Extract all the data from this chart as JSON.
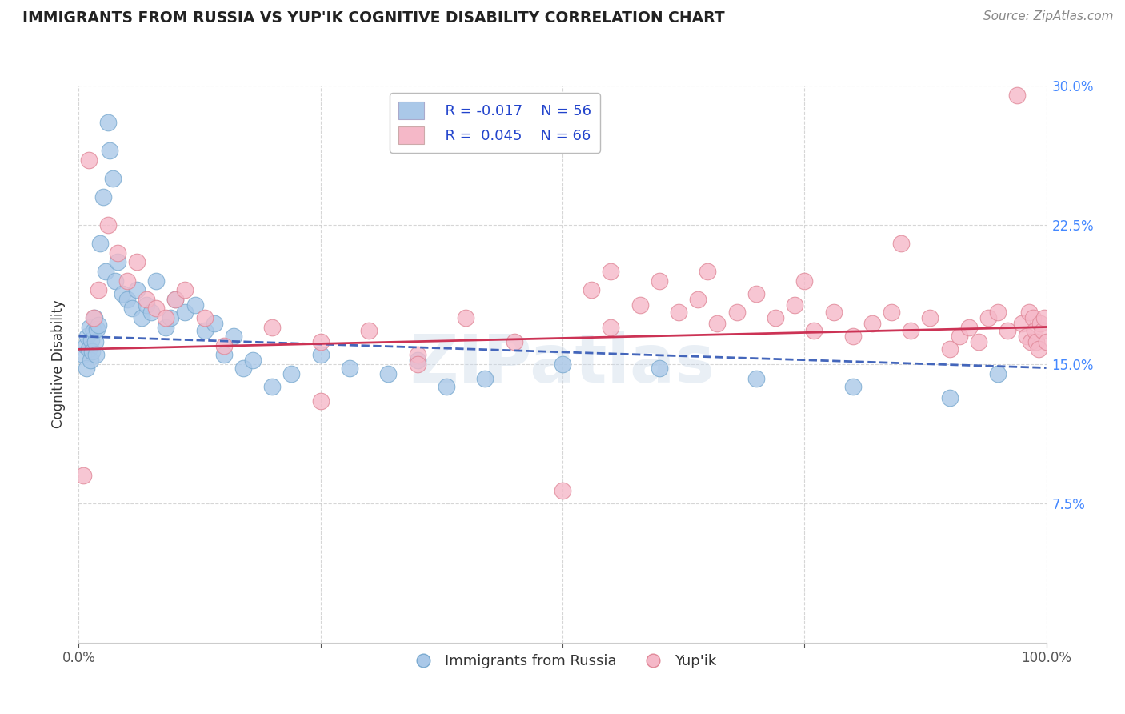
{
  "title": "IMMIGRANTS FROM RUSSIA VS YUP'IK COGNITIVE DISABILITY CORRELATION CHART",
  "source": "Source: ZipAtlas.com",
  "ylabel": "Cognitive Disability",
  "legend_r1": "R = -0.017",
  "legend_n1": "N = 56",
  "legend_r2": "R =  0.045",
  "legend_n2": "N = 66",
  "watermark": "ZIPatlas",
  "blue_color": "#aac8e8",
  "blue_edge": "#7aaad0",
  "pink_color": "#f5b8c8",
  "pink_edge": "#e08898",
  "blue_line_color": "#4466bb",
  "pink_line_color": "#cc3355",
  "xmin": 0.0,
  "xmax": 1.0,
  "ymin": 0.0,
  "ymax": 0.3,
  "yticks": [
    0.075,
    0.15,
    0.225,
    0.3
  ],
  "ytick_labels": [
    "7.5%",
    "15.0%",
    "22.5%",
    "30.0%"
  ],
  "blue_x": [
    0.005,
    0.007,
    0.008,
    0.009,
    0.01,
    0.011,
    0.012,
    0.013,
    0.014,
    0.015,
    0.016,
    0.017,
    0.018,
    0.019,
    0.02,
    0.022,
    0.025,
    0.028,
    0.03,
    0.032,
    0.035,
    0.038,
    0.04,
    0.045,
    0.05,
    0.055,
    0.06,
    0.065,
    0.07,
    0.075,
    0.08,
    0.09,
    0.095,
    0.1,
    0.11,
    0.12,
    0.13,
    0.14,
    0.15,
    0.16,
    0.17,
    0.18,
    0.2,
    0.22,
    0.25,
    0.28,
    0.32,
    0.35,
    0.38,
    0.42,
    0.5,
    0.6,
    0.7,
    0.8,
    0.9,
    0.95
  ],
  "blue_y": [
    0.155,
    0.16,
    0.148,
    0.165,
    0.158,
    0.17,
    0.152,
    0.163,
    0.157,
    0.168,
    0.175,
    0.162,
    0.155,
    0.169,
    0.171,
    0.215,
    0.24,
    0.2,
    0.28,
    0.265,
    0.25,
    0.195,
    0.205,
    0.188,
    0.185,
    0.18,
    0.19,
    0.175,
    0.182,
    0.178,
    0.195,
    0.17,
    0.175,
    0.185,
    0.178,
    0.182,
    0.168,
    0.172,
    0.155,
    0.165,
    0.148,
    0.152,
    0.138,
    0.145,
    0.155,
    0.148,
    0.145,
    0.152,
    0.138,
    0.142,
    0.15,
    0.148,
    0.142,
    0.138,
    0.132,
    0.145
  ],
  "pink_x": [
    0.005,
    0.01,
    0.015,
    0.02,
    0.03,
    0.04,
    0.05,
    0.06,
    0.07,
    0.08,
    0.09,
    0.1,
    0.11,
    0.13,
    0.15,
    0.2,
    0.25,
    0.3,
    0.35,
    0.4,
    0.45,
    0.5,
    0.53,
    0.55,
    0.58,
    0.6,
    0.62,
    0.64,
    0.66,
    0.68,
    0.7,
    0.72,
    0.74,
    0.76,
    0.78,
    0.8,
    0.82,
    0.84,
    0.86,
    0.88,
    0.9,
    0.91,
    0.92,
    0.93,
    0.94,
    0.95,
    0.96,
    0.97,
    0.975,
    0.98,
    0.982,
    0.984,
    0.986,
    0.988,
    0.99,
    0.992,
    0.994,
    0.996,
    0.998,
    1.0,
    0.65,
    0.75,
    0.85,
    0.55,
    0.35,
    0.25
  ],
  "pink_y": [
    0.09,
    0.26,
    0.175,
    0.19,
    0.225,
    0.21,
    0.195,
    0.205,
    0.185,
    0.18,
    0.175,
    0.185,
    0.19,
    0.175,
    0.16,
    0.17,
    0.162,
    0.168,
    0.155,
    0.175,
    0.162,
    0.082,
    0.19,
    0.2,
    0.182,
    0.195,
    0.178,
    0.185,
    0.172,
    0.178,
    0.188,
    0.175,
    0.182,
    0.168,
    0.178,
    0.165,
    0.172,
    0.178,
    0.168,
    0.175,
    0.158,
    0.165,
    0.17,
    0.162,
    0.175,
    0.178,
    0.168,
    0.295,
    0.172,
    0.165,
    0.178,
    0.162,
    0.175,
    0.168,
    0.162,
    0.158,
    0.172,
    0.168,
    0.175,
    0.162,
    0.2,
    0.195,
    0.215,
    0.17,
    0.15,
    0.13
  ],
  "blue_trend_x": [
    0.0,
    1.0
  ],
  "blue_trend_y": [
    0.165,
    0.148
  ],
  "pink_trend_x": [
    0.0,
    1.0
  ],
  "pink_trend_y": [
    0.158,
    0.17
  ]
}
